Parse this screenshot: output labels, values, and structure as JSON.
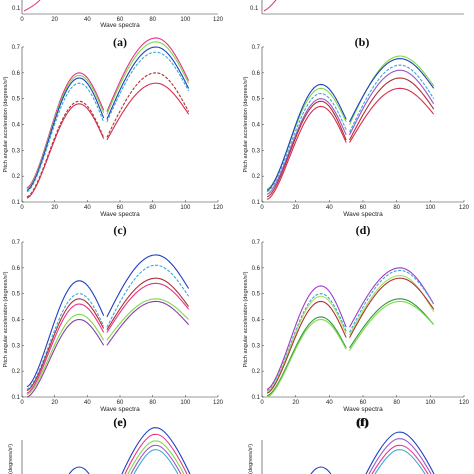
{
  "figure": {
    "top_strip": {
      "xlabel": "Wave spectra",
      "xticks": [
        "0",
        "20",
        "40",
        "60",
        "80",
        "100",
        "120"
      ],
      "left_ytick": "0.1",
      "right_ytick": "0.1"
    },
    "label_a": "(a)",
    "label_b": "(b)",
    "label_e": "(e)",
    "label_f": "(f)"
  },
  "chart_data": [
    {
      "panel": "(c)",
      "type": "line",
      "ylabel": "Pitch angular acceleration (degrees/s²)",
      "xlabel": "Wave spectra",
      "xlim": [
        0,
        120
      ],
      "ylim": [
        0.1,
        0.7
      ],
      "xticks": [
        0,
        20,
        40,
        60,
        80,
        100,
        120
      ],
      "yticks": [
        0.1,
        0.2,
        0.3,
        0.4,
        0.5,
        0.6,
        0.7
      ],
      "grid": false,
      "series": [
        {
          "color": "#e6338a",
          "style": "solid",
          "values": [
            0.155,
            0.6,
            0.455,
            0.45,
            0.735,
            0.57
          ]
        },
        {
          "color": "#7fd94a",
          "style": "solid",
          "values": [
            0.15,
            0.59,
            0.445,
            0.44,
            0.72,
            0.56
          ]
        },
        {
          "color": "#1f3fbf",
          "style": "solid",
          "values": [
            0.145,
            0.58,
            0.425,
            0.42,
            0.7,
            0.54
          ]
        },
        {
          "color": "#3aa7d9",
          "style": "dashed",
          "values": [
            0.14,
            0.56,
            0.41,
            0.41,
            0.68,
            0.53
          ]
        },
        {
          "color": "#b03030",
          "style": "dashed",
          "values": [
            0.12,
            0.49,
            0.35,
            0.35,
            0.6,
            0.45
          ]
        },
        {
          "color": "#d62f4f",
          "style": "solid",
          "values": [
            0.115,
            0.48,
            0.345,
            0.34,
            0.56,
            0.44
          ]
        }
      ]
    },
    {
      "panel": "(d)",
      "type": "line",
      "ylabel": "Pitch angular acceleration (degrees/s²)",
      "xlabel": "Wave spectra",
      "xlim": [
        0,
        120
      ],
      "ylim": [
        0.1,
        0.7
      ],
      "xticks": [
        0,
        20,
        40,
        60,
        80,
        100,
        120
      ],
      "yticks": [
        0.1,
        0.2,
        0.3,
        0.4,
        0.5,
        0.6,
        0.7
      ],
      "grid": false,
      "series": [
        {
          "color": "#7fd94a",
          "style": "solid",
          "values": [
            0.15,
            0.54,
            0.41,
            0.4,
            0.665,
            0.55
          ]
        },
        {
          "color": "#1f3fbf",
          "style": "solid",
          "values": [
            0.145,
            0.555,
            0.42,
            0.41,
            0.655,
            0.54
          ]
        },
        {
          "color": "#3aa7d9",
          "style": "dashed",
          "values": [
            0.14,
            0.52,
            0.38,
            0.37,
            0.63,
            0.5
          ]
        },
        {
          "color": "#9b55c9",
          "style": "solid",
          "values": [
            0.13,
            0.5,
            0.36,
            0.36,
            0.61,
            0.48
          ]
        },
        {
          "color": "#b03030",
          "style": "solid",
          "values": [
            0.12,
            0.49,
            0.34,
            0.34,
            0.58,
            0.46
          ]
        },
        {
          "color": "#d62f4f",
          "style": "solid",
          "values": [
            0.11,
            0.47,
            0.33,
            0.33,
            0.54,
            0.44
          ]
        }
      ]
    },
    {
      "panel": "(e)",
      "type": "line",
      "ylabel": "Pitch angular acceleration (degrees/s²)",
      "xlabel": "Wave spectra",
      "xlim": [
        0,
        120
      ],
      "ylim": [
        0.1,
        0.7
      ],
      "xticks": [
        0,
        20,
        40,
        60,
        80,
        100,
        120
      ],
      "yticks": [
        0.1,
        0.2,
        0.3,
        0.4,
        0.5,
        0.6,
        0.7
      ],
      "grid": false,
      "series": [
        {
          "color": "#1f3fbf",
          "style": "solid",
          "values": [
            0.14,
            0.55,
            0.415,
            0.41,
            0.65,
            0.52
          ]
        },
        {
          "color": "#3aa7d9",
          "style": "dashed",
          "values": [
            0.13,
            0.5,
            0.375,
            0.37,
            0.61,
            0.49
          ]
        },
        {
          "color": "#b03030",
          "style": "solid",
          "values": [
            0.125,
            0.48,
            0.365,
            0.36,
            0.56,
            0.45
          ]
        },
        {
          "color": "#e6338a",
          "style": "solid",
          "values": [
            0.115,
            0.46,
            0.35,
            0.35,
            0.54,
            0.44
          ]
        },
        {
          "color": "#7fd94a",
          "style": "solid",
          "values": [
            0.11,
            0.42,
            0.32,
            0.32,
            0.48,
            0.4
          ]
        },
        {
          "color": "#8a3fa8",
          "style": "solid",
          "values": [
            0.1,
            0.4,
            0.3,
            0.3,
            0.47,
            0.38
          ]
        }
      ]
    },
    {
      "panel": "(f)",
      "type": "line",
      "ylabel": "Pitch angular acceleration (degrees/s²)",
      "xlabel": "Wave spectra",
      "xlim": [
        0,
        120
      ],
      "ylim": [
        0.1,
        0.7
      ],
      "xticks": [
        0,
        20,
        40,
        60,
        80,
        100,
        120
      ],
      "yticks": [
        0.1,
        0.2,
        0.3,
        0.4,
        0.5,
        0.6,
        0.7
      ],
      "grid": false,
      "series": [
        {
          "color": "#9b3fc9",
          "style": "solid",
          "values": [
            0.13,
            0.53,
            0.37,
            0.37,
            0.6,
            0.46
          ]
        },
        {
          "color": "#3aa7d9",
          "style": "dashed",
          "values": [
            0.125,
            0.5,
            0.355,
            0.35,
            0.59,
            0.46
          ]
        },
        {
          "color": "#a8e060",
          "style": "solid",
          "values": [
            0.12,
            0.49,
            0.345,
            0.34,
            0.57,
            0.43
          ]
        },
        {
          "color": "#b03030",
          "style": "solid",
          "values": [
            0.115,
            0.47,
            0.33,
            0.33,
            0.56,
            0.44
          ]
        },
        {
          "color": "#2f9a3a",
          "style": "solid",
          "values": [
            0.105,
            0.41,
            0.29,
            0.29,
            0.48,
            0.38
          ]
        },
        {
          "color": "#7fd94a",
          "style": "solid",
          "values": [
            0.1,
            0.4,
            0.285,
            0.28,
            0.47,
            0.38
          ]
        }
      ]
    }
  ],
  "partial_panels": {
    "g_ylabel": "(degrees/s²)",
    "g_peaks": [
      0.66,
      0.63,
      0.6,
      0.58,
      0.56
    ],
    "h_peaks": [
      0.64,
      0.61,
      0.58,
      0.56
    ],
    "g_colors": [
      "#1f3fbf",
      "#e6338a",
      "#7fd94a",
      "#9b55c9",
      "#3aa7d9"
    ],
    "h_colors": [
      "#1f3fbf",
      "#9b55c9",
      "#e6338a",
      "#3aa7d9"
    ]
  }
}
